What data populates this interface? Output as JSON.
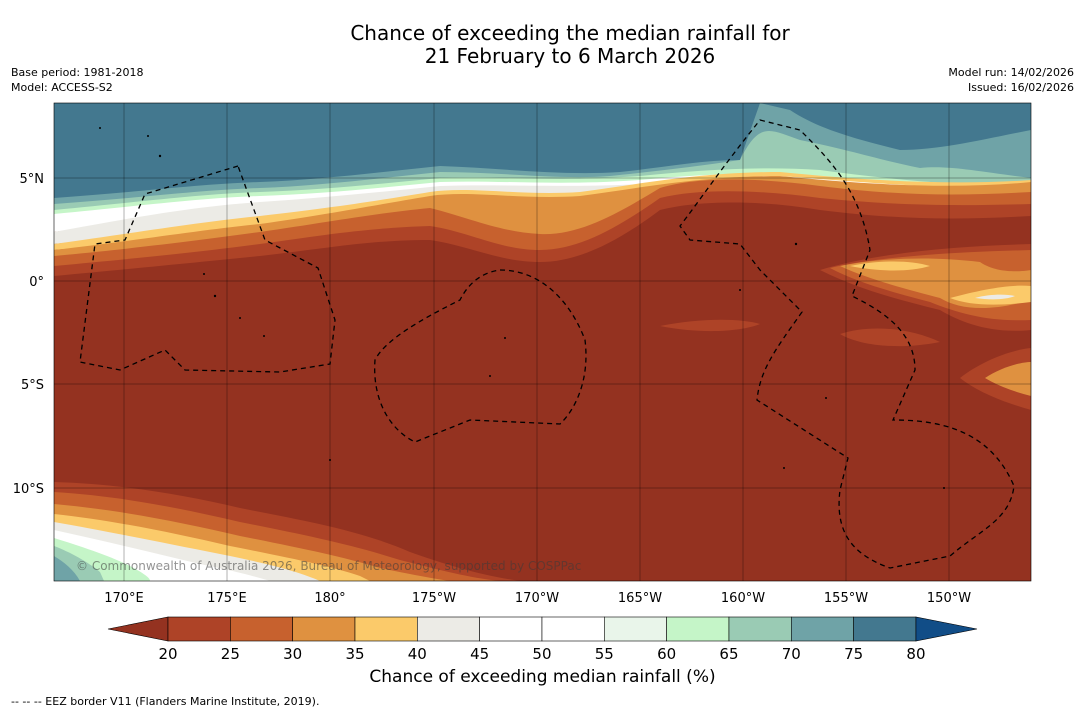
{
  "title": {
    "line1": "Chance of exceeding the median rainfall for",
    "line2": "21 February to 6 March 2026"
  },
  "meta": {
    "base_period": "Base period: 1981-2018",
    "model": "Model: ACCESS-S2",
    "model_run": "Model run: 14/02/2026",
    "issued": "Issued: 16/02/2026"
  },
  "axes": {
    "lat_labels": [
      "5°N",
      "0°",
      "5°S",
      "10°S"
    ],
    "lon_labels": [
      "170°E",
      "175°E",
      "180°",
      "175°W",
      "170°W",
      "165°W",
      "160°W",
      "155°W",
      "150°W"
    ]
  },
  "copyright": "© Commonwealth of Australia 2026, Bureau of Meteorology, supported by COSPPac",
  "colorbar": {
    "label": "Chance of exceeding median rainfall (%)",
    "ticks": [
      "20",
      "25",
      "30",
      "35",
      "40",
      "45",
      "50",
      "55",
      "60",
      "65",
      "70",
      "75",
      "80"
    ],
    "colors": [
      "#943220",
      "#ae4327",
      "#c7612e",
      "#df9140",
      "#fbca6a",
      "#ecebe6",
      "#ffffff",
      "#ffffff",
      "#e9f5ea",
      "#c5f5c8",
      "#9acbb4",
      "#6fa3a7",
      "#43788f",
      "#114d87"
    ]
  },
  "footnote": "--  --  -- EEZ border V11 (Flanders Marine Institute, 2019)."
}
